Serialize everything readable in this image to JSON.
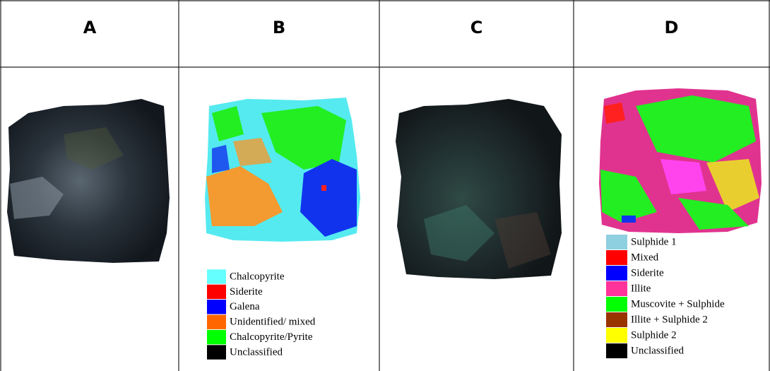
{
  "panels": [
    {
      "label": "A"
    },
    {
      "label": "B",
      "legend": [
        {
          "label": "Chalcopyrite",
          "color": "#66ffff"
        },
        {
          "label": "Siderite",
          "color": "#ff0000"
        },
        {
          "label": "Galena",
          "color": "#0000ff"
        },
        {
          "label": "Unidentified/ mixed",
          "color": "#ff6600"
        },
        {
          "label": "Chalcopyrite/Pyrite",
          "color": "#00ff00"
        },
        {
          "label": "Unclassified",
          "color": "#000000"
        }
      ]
    },
    {
      "label": "C"
    },
    {
      "label": "D",
      "legend": [
        {
          "label": "Sulphide 1",
          "color": "#8ecfe0"
        },
        {
          "label": "Mixed",
          "color": "#ff0000"
        },
        {
          "label": "Siderite",
          "color": "#0000ff"
        },
        {
          "label": "Illite",
          "color": "#ff3399"
        },
        {
          "label": "Muscovite + Sulphide",
          "color": "#00ff00"
        },
        {
          "label": "Illite + Sulphide 2",
          "color": "#993300"
        },
        {
          "label": "Sulphide 2",
          "color": "#ffff00"
        },
        {
          "label": "Unclassified",
          "color": "#000000"
        }
      ]
    }
  ]
}
